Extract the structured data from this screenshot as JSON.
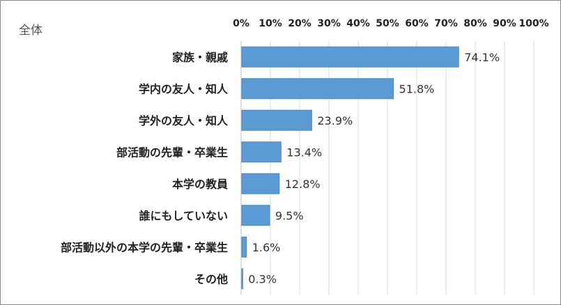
{
  "chart_data": {
    "type": "bar",
    "orientation": "horizontal",
    "title": "全体",
    "categories": [
      "家族・親戚",
      "学内の友人・知人",
      "学外の友人・知人",
      "部活動の先輩・卒業生",
      "本学の教員",
      "誰にもしていない",
      "部活動以外の本学の先輩・卒業生",
      "その他"
    ],
    "values": [
      74.1,
      51.8,
      23.9,
      13.4,
      12.8,
      9.5,
      1.6,
      0.3
    ],
    "value_labels": [
      "74.1%",
      "51.8%",
      "23.9%",
      "13.4%",
      "12.8%",
      "9.5%",
      "1.6%",
      "0.3%"
    ],
    "x_ticks": [
      0,
      10,
      20,
      30,
      40,
      50,
      60,
      70,
      80,
      90,
      100
    ],
    "x_tick_labels": [
      "0%",
      "10%",
      "20%",
      "30%",
      "40%",
      "50%",
      "60%",
      "70%",
      "80%",
      "90%",
      "100%"
    ],
    "xlim": [
      0,
      100
    ],
    "x_axis_position": "top",
    "grid": true,
    "legend": "none",
    "bar_color": "#5b9bd5",
    "bar_edge_color": "#4f86c0",
    "grid_color": "#d9d9d9",
    "axis_color": "#bfbfbf"
  }
}
